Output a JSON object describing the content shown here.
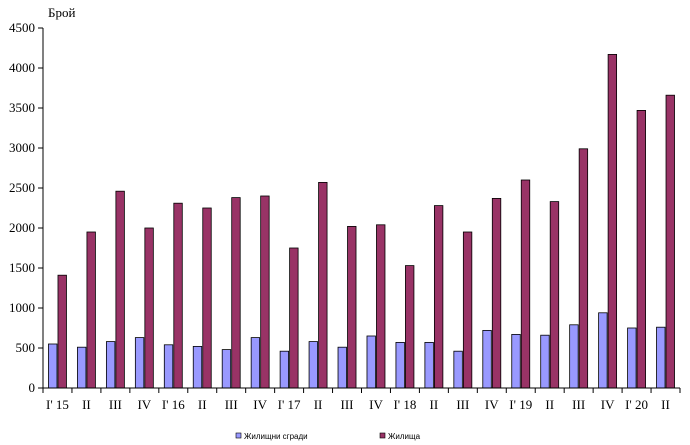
{
  "chart_data": {
    "type": "bar",
    "ylabel": "Брой",
    "ylim": [
      0,
      4500
    ],
    "yticks": [
      0,
      500,
      1000,
      1500,
      2000,
      2500,
      3000,
      3500,
      4000,
      4500
    ],
    "grid": false,
    "legend_position": "bottom",
    "categories": [
      "I' 15",
      "II",
      "III",
      "IV",
      "I' 16",
      "II",
      "III",
      "IV",
      "I' 17",
      "II",
      "III",
      "IV",
      "I' 18",
      "II",
      "III",
      "IV",
      "I' 19",
      "II",
      "III",
      "IV",
      "I' 20",
      "II"
    ],
    "series": [
      {
        "name": "Жилищни сгради",
        "color": "#9999ff",
        "values": [
          550,
          510,
          580,
          630,
          540,
          520,
          480,
          630,
          460,
          580,
          510,
          650,
          570,
          570,
          460,
          720,
          670,
          660,
          790,
          940,
          750,
          760
        ]
      },
      {
        "name": "Жилища",
        "color": "#993366",
        "values": [
          1410,
          1950,
          2460,
          2000,
          2310,
          2250,
          2380,
          2400,
          1750,
          2570,
          2020,
          2040,
          1530,
          2280,
          1950,
          2370,
          2600,
          2330,
          2990,
          4170,
          3470,
          3660
        ]
      }
    ]
  }
}
